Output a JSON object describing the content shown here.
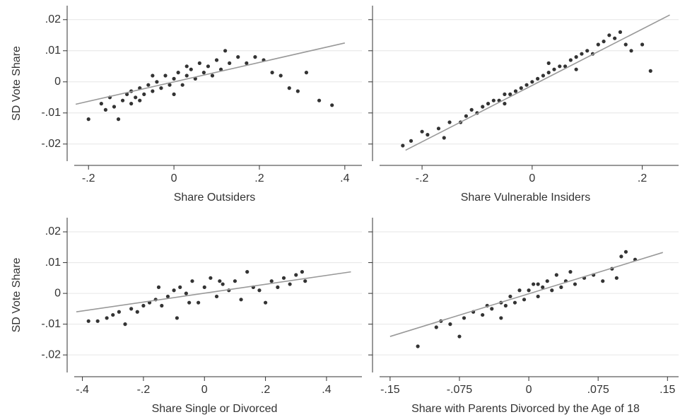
{
  "chart_data": [
    {
      "type": "scatter",
      "xlabel": "Share Outsiders",
      "ylabel": "SD Vote Share",
      "xlim": [
        -0.25,
        0.44
      ],
      "ylim": [
        -0.0255,
        0.0245
      ],
      "xticks": [
        {
          "value": -0.2,
          "label": "-.2"
        },
        0,
        {
          "value": 0.2,
          "label": ".2"
        },
        {
          "value": 0.4,
          "label": ".4"
        }
      ],
      "yticks": [
        {
          "value": -0.02,
          "label": "-.02"
        },
        {
          "value": -0.01,
          "label": "-.01"
        },
        0,
        {
          "value": 0.01,
          "label": ".01"
        },
        {
          "value": 0.02,
          "label": ".02"
        }
      ],
      "ytick_labels": true,
      "grid": true,
      "points": {
        "color": "#333333",
        "x": [
          -0.2,
          -0.17,
          -0.16,
          -0.15,
          -0.14,
          -0.13,
          -0.12,
          -0.11,
          -0.1,
          -0.1,
          -0.09,
          -0.08,
          -0.07,
          -0.06,
          -0.05,
          -0.04,
          -0.03,
          -0.02,
          -0.01,
          0,
          0.01,
          0.02,
          0.03,
          0.04,
          0.05,
          0.06,
          0.07,
          0.08,
          0.09,
          0.1,
          0.11,
          0.12,
          0.13,
          0.15,
          0.17,
          0.19,
          0.21,
          0.23,
          0.25,
          0.27,
          0.29,
          0.31,
          0.34,
          0.37,
          -0.08,
          0,
          0.03,
          -0.05
        ],
        "y": [
          -0.012,
          -0.007,
          -0.009,
          -0.005,
          -0.008,
          -0.012,
          -0.006,
          -0.004,
          -0.007,
          -0.003,
          -0.005,
          -0.002,
          -0.004,
          -0.001,
          -0.003,
          0,
          -0.002,
          0.002,
          -0.001,
          0.001,
          0.003,
          -0.001,
          0.002,
          0.004,
          0.001,
          0.006,
          0.003,
          0.005,
          0.002,
          0.007,
          0.004,
          0.01,
          0.006,
          0.008,
          0.006,
          0.008,
          0.007,
          0.003,
          0.002,
          -0.002,
          -0.003,
          0.003,
          -0.006,
          -0.0075,
          -0.006,
          -0.004,
          0.005,
          0.002
        ]
      },
      "fit_line": {
        "color": "#999999",
        "x": [
          -0.23,
          0.4
        ],
        "y": [
          -0.0072,
          0.0125
        ]
      }
    },
    {
      "type": "scatter",
      "xlabel": "Share Vulnerable Insiders",
      "xlim": [
        -0.29,
        0.266
      ],
      "ylim": [
        -0.0255,
        0.0245
      ],
      "xticks": [
        {
          "value": -0.2,
          "label": "-.2"
        },
        0,
        {
          "value": 0.2,
          "label": ".2"
        }
      ],
      "yticks": [
        -0.02,
        -0.01,
        0,
        0.01,
        0.02
      ],
      "ytick_labels": false,
      "grid": true,
      "points": {
        "color": "#333333",
        "x": [
          -0.235,
          -0.22,
          -0.2,
          -0.19,
          -0.17,
          -0.16,
          -0.15,
          -0.13,
          -0.12,
          -0.11,
          -0.1,
          -0.09,
          -0.08,
          -0.07,
          -0.06,
          -0.05,
          -0.04,
          -0.03,
          -0.02,
          -0.01,
          0,
          0.01,
          0.02,
          0.03,
          0.04,
          0.05,
          0.06,
          0.07,
          0.08,
          0.09,
          0.1,
          0.11,
          0.12,
          0.13,
          0.14,
          0.15,
          0.16,
          0.17,
          0.18,
          0.2,
          0.215,
          -0.05,
          0.03,
          0.08
        ],
        "y": [
          -0.0205,
          -0.019,
          -0.016,
          -0.017,
          -0.015,
          -0.018,
          -0.013,
          -0.013,
          -0.011,
          -0.009,
          -0.01,
          -0.008,
          -0.007,
          -0.006,
          -0.006,
          -0.004,
          -0.004,
          -0.003,
          -0.002,
          -0.001,
          0,
          0.001,
          0.002,
          0.003,
          0.004,
          0.005,
          0.005,
          0.007,
          0.008,
          0.009,
          0.01,
          0.009,
          0.012,
          0.013,
          0.015,
          0.014,
          0.016,
          0.012,
          0.01,
          0.012,
          0.0035,
          -0.007,
          0.006,
          0.004
        ]
      },
      "fit_line": {
        "color": "#999999",
        "x": [
          -0.23,
          0.25
        ],
        "y": [
          -0.022,
          0.0215
        ]
      }
    },
    {
      "type": "scatter",
      "xlabel": "Share Single or Divorced",
      "ylabel": "SD Vote Share",
      "xlim": [
        -0.45,
        0.516
      ],
      "ylim": [
        -0.0257,
        0.0246
      ],
      "xticks": [
        {
          "value": -0.4,
          "label": "-.4"
        },
        {
          "value": -0.2,
          "label": "-.2"
        },
        0,
        {
          "value": 0.2,
          "label": ".2"
        },
        {
          "value": 0.4,
          "label": ".4"
        }
      ],
      "yticks": [
        {
          "value": -0.02,
          "label": "-.02"
        },
        {
          "value": -0.01,
          "label": "-.01"
        },
        0,
        {
          "value": 0.01,
          "label": ".01"
        },
        {
          "value": 0.02,
          "label": ".02"
        }
      ],
      "ytick_labels": true,
      "grid": true,
      "points": {
        "color": "#333333",
        "x": [
          -0.38,
          -0.35,
          -0.32,
          -0.3,
          -0.28,
          -0.26,
          -0.24,
          -0.22,
          -0.2,
          -0.18,
          -0.16,
          -0.14,
          -0.12,
          -0.1,
          -0.09,
          -0.08,
          -0.06,
          -0.04,
          -0.02,
          0,
          0.02,
          0.04,
          0.06,
          0.08,
          0.1,
          0.12,
          0.14,
          0.16,
          0.18,
          0.2,
          0.22,
          0.24,
          0.26,
          0.28,
          0.3,
          0.32,
          0.33,
          -0.15,
          0.05,
          -0.05
        ],
        "y": [
          -0.009,
          -0.009,
          -0.008,
          -0.007,
          -0.006,
          -0.01,
          -0.005,
          -0.006,
          -0.004,
          -0.003,
          -0.002,
          -0.004,
          -0.001,
          0.001,
          -0.008,
          0.002,
          0,
          0.004,
          -0.003,
          0.002,
          0.005,
          -0.001,
          0.003,
          0.001,
          0.004,
          -0.002,
          0.007,
          0.002,
          0.001,
          -0.003,
          0.004,
          0.002,
          0.005,
          0.003,
          0.006,
          0.007,
          0.004,
          0.002,
          0.004,
          -0.003
        ]
      },
      "fit_line": {
        "color": "#999999",
        "x": [
          -0.42,
          0.48
        ],
        "y": [
          -0.006,
          0.007
        ]
      }
    },
    {
      "type": "scatter",
      "xlabel": "Share with Parents Divorced by the Age of 18",
      "xlim": [
        -0.169,
        0.162
      ],
      "ylim": [
        -0.0257,
        0.0246
      ],
      "xticks": [
        {
          "value": -0.15,
          "label": "-.15"
        },
        {
          "value": -0.075,
          "label": "-.075"
        },
        0,
        {
          "value": 0.075,
          "label": ".075"
        },
        {
          "value": 0.15,
          "label": ".15"
        }
      ],
      "yticks": [
        -0.02,
        -0.01,
        0,
        0.01,
        0.02
      ],
      "ytick_labels": false,
      "grid": true,
      "points": {
        "color": "#333333",
        "x": [
          -0.12,
          -0.1,
          -0.095,
          -0.085,
          -0.075,
          -0.07,
          -0.06,
          -0.05,
          -0.045,
          -0.04,
          -0.03,
          -0.025,
          -0.02,
          -0.015,
          -0.01,
          -0.005,
          0,
          0.005,
          0.01,
          0.015,
          0.02,
          0.025,
          0.03,
          0.035,
          0.04,
          0.05,
          0.06,
          0.07,
          0.08,
          0.09,
          0.1,
          0.105,
          0.115,
          0.095,
          -0.03,
          0.045,
          0.01
        ],
        "y": [
          -0.0172,
          -0.011,
          -0.009,
          -0.01,
          -0.014,
          -0.008,
          -0.006,
          -0.007,
          -0.004,
          -0.005,
          -0.003,
          -0.004,
          -0.001,
          -0.003,
          0.001,
          -0.002,
          0.001,
          0.003,
          -0.001,
          0.002,
          0.004,
          0.001,
          0.006,
          0.002,
          0.004,
          0.003,
          0.005,
          0.006,
          0.004,
          0.008,
          0.012,
          0.0135,
          0.011,
          0.005,
          -0.008,
          0.007,
          0.003
        ]
      },
      "fit_line": {
        "color": "#999999",
        "x": [
          -0.15,
          0.145
        ],
        "y": [
          -0.014,
          0.0133
        ]
      }
    }
  ]
}
